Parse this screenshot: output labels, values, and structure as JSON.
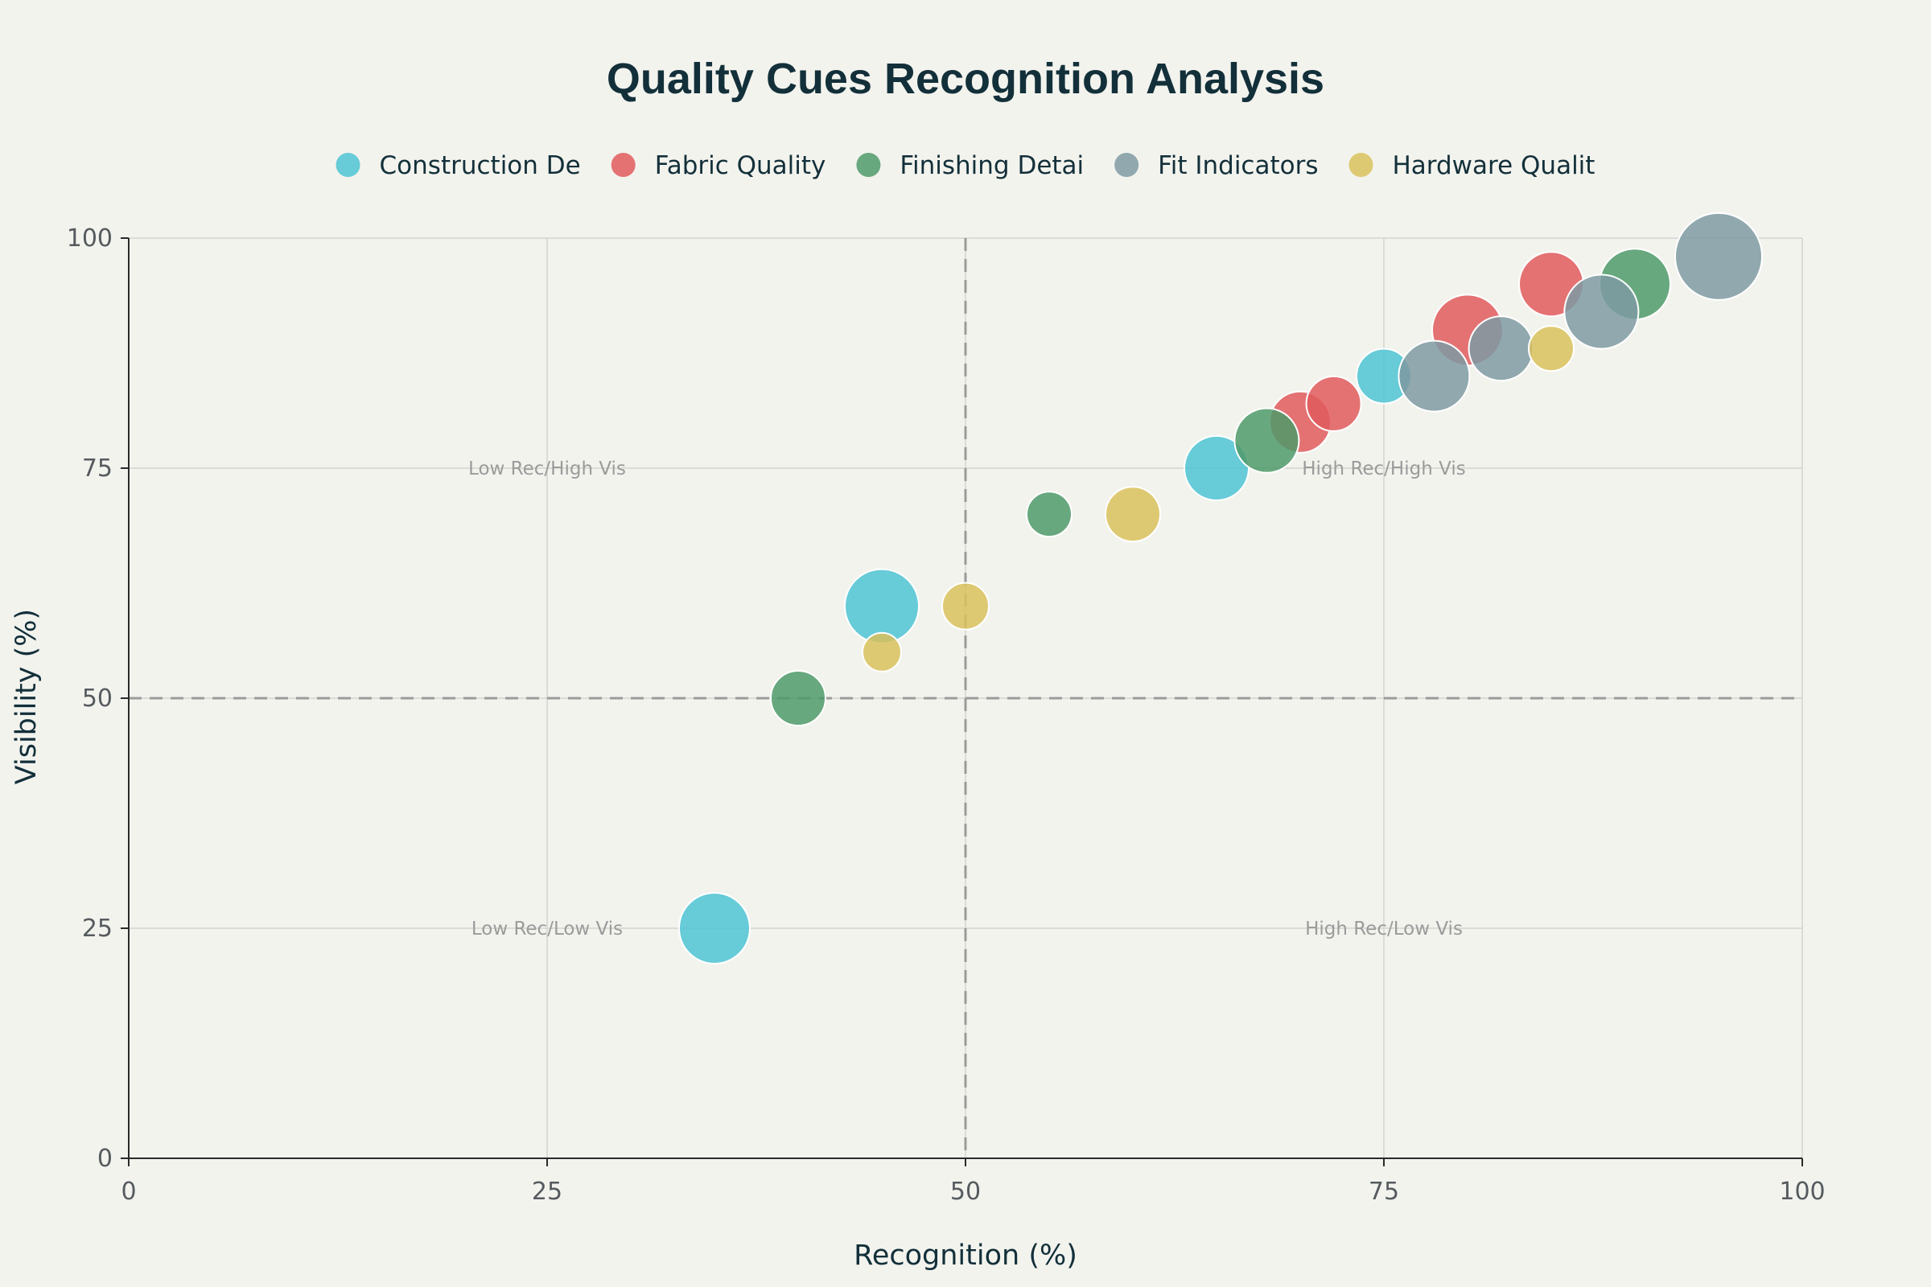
{
  "chart_data": {
    "type": "scatter",
    "subtype": "bubble",
    "title": "Quality Cues Recognition Analysis",
    "xlabel": "Recognition (%)",
    "ylabel": "Visibility (%)",
    "xlim": [
      0,
      100
    ],
    "ylim": [
      0,
      100
    ],
    "x_ticks": [
      0,
      25,
      50,
      75,
      100
    ],
    "y_ticks": [
      0,
      25,
      50,
      75,
      100
    ],
    "grid": true,
    "legend_position": "top",
    "reference_lines": {
      "x": 50,
      "y": 50
    },
    "quadrant_labels": [
      {
        "text": "Low Rec/High Vis",
        "x": 25,
        "y": 75
      },
      {
        "text": "High Rec/High Vis",
        "x": 75,
        "y": 75
      },
      {
        "text": "Low Rec/Low Vis",
        "x": 25,
        "y": 25
      },
      {
        "text": "High Rec/Low Vis",
        "x": 75,
        "y": 25
      }
    ],
    "series": [
      {
        "name": "Construction De",
        "color": "#4dc3d3",
        "points": [
          {
            "x": 35,
            "y": 25,
            "size": 44
          },
          {
            "x": 45,
            "y": 60,
            "size": 46
          },
          {
            "x": 65,
            "y": 75,
            "size": 40
          },
          {
            "x": 75,
            "y": 85,
            "size": 34
          }
        ]
      },
      {
        "name": "Fabric Quality",
        "color": "#e05b5d",
        "points": [
          {
            "x": 70,
            "y": 80,
            "size": 38
          },
          {
            "x": 72,
            "y": 82,
            "size": 34
          },
          {
            "x": 80,
            "y": 90,
            "size": 44
          },
          {
            "x": 85,
            "y": 95,
            "size": 40
          }
        ]
      },
      {
        "name": "Finishing Detai",
        "color": "#4f9a6a",
        "points": [
          {
            "x": 40,
            "y": 50,
            "size": 34
          },
          {
            "x": 55,
            "y": 70,
            "size": 28
          },
          {
            "x": 68,
            "y": 78,
            "size": 40
          },
          {
            "x": 90,
            "y": 95,
            "size": 44
          }
        ]
      },
      {
        "name": "Fit Indicators",
        "color": "#7e9aa2",
        "points": [
          {
            "x": 78,
            "y": 85,
            "size": 44
          },
          {
            "x": 82,
            "y": 88,
            "size": 40
          },
          {
            "x": 88,
            "y": 92,
            "size": 46
          },
          {
            "x": 95,
            "y": 98,
            "size": 54
          }
        ]
      },
      {
        "name": "Hardware Qualit",
        "color": "#d9c15d",
        "points": [
          {
            "x": 45,
            "y": 55,
            "size": 24
          },
          {
            "x": 50,
            "y": 60,
            "size": 29
          },
          {
            "x": 60,
            "y": 70,
            "size": 34
          },
          {
            "x": 85,
            "y": 88,
            "size": 28
          }
        ]
      }
    ]
  }
}
